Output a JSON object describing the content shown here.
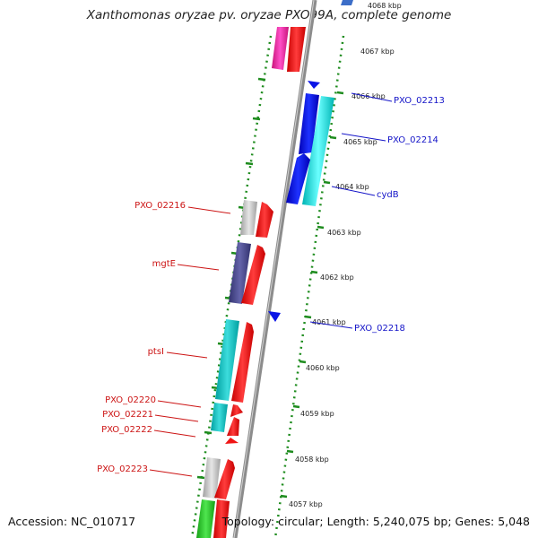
{
  "title": "Xanthomonas oryzae pv. oryzae PXO99A, complete genome",
  "footer": {
    "accession": "Accession: NC_010717",
    "summary": "Topology: circular; Length: 5,240,075 bp; Genes: 5,048"
  },
  "colors": {
    "backbone": "#8c8c8c",
    "tick_green": "#1e8c1e",
    "blue_gene": "#0a14e6",
    "cyan_gene": "#14e6e6",
    "red_gene": "#f01414",
    "pink_gene": "#f028a0",
    "gray_gene": "#bebebe",
    "purple_gene": "#46468c",
    "teal_gene": "#14bebe",
    "green_gene": "#28c828",
    "blue_label": "#1414c8",
    "red_label": "#cc1414"
  },
  "scale_labels": [
    "4068 kbp",
    "4067 kbp",
    "4066 kbp",
    "4065 kbp",
    "4064 kbp",
    "4063 kbp",
    "4062 kbp",
    "4061 kbp",
    "4060 kbp",
    "4059 kbp",
    "4058 kbp",
    "4057 kbp"
  ],
  "gene_labels_right": [
    "PXO_02213",
    "PXO_02214",
    "cydB",
    "PXO_02218"
  ],
  "gene_labels_left": [
    "PXO_02216",
    "mgtE",
    "ptsI",
    "PXO_02220",
    "PXO_02221",
    "PXO_02222",
    "PXO_02223"
  ]
}
